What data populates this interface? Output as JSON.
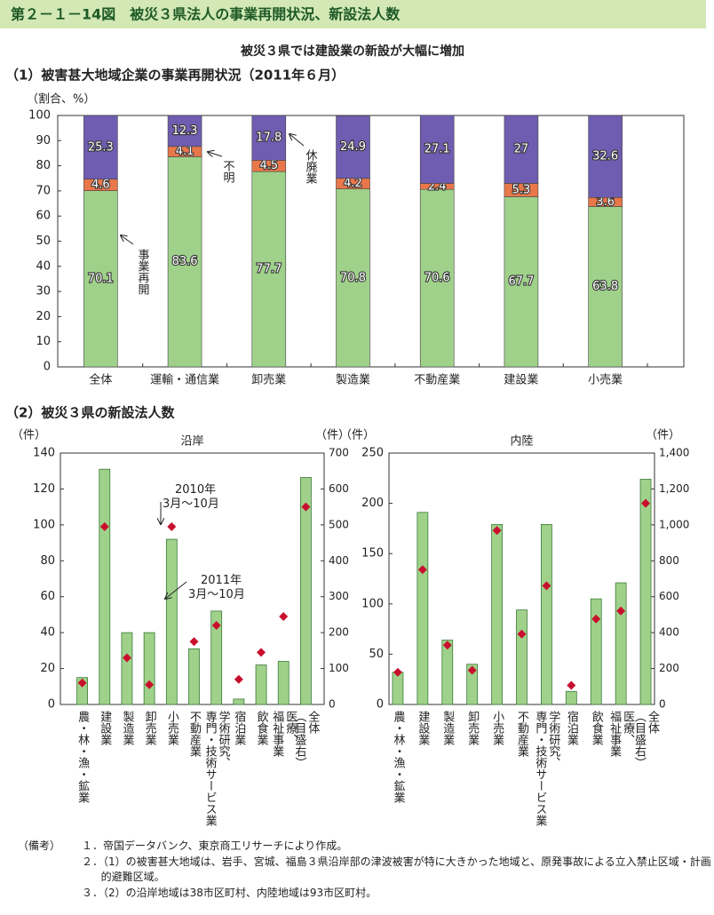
{
  "header": {
    "title": "第２－１－14図　被災３県法人の事業再開状況、新設法人数",
    "subtitle": "被災３県では建設業の新設が大幅に増加"
  },
  "chart_data": [
    {
      "type": "stacked_bar",
      "title": "（1）被害甚大地域企業の事業再開状況（2011年６月）",
      "ylabel": "（割合、%）",
      "categories": [
        "全体",
        "運輸・通信業",
        "卸売業",
        "製造業",
        "不動産業",
        "建設業",
        "小売業"
      ],
      "series": [
        {
          "name": "事業再開",
          "color": "#9fd18a",
          "values": [
            70.1,
            83.6,
            77.7,
            70.8,
            70.6,
            67.7,
            63.8
          ]
        },
        {
          "name": "不明",
          "color": "#e8774a",
          "values": [
            4.6,
            4.1,
            4.5,
            4.2,
            2.4,
            5.3,
            3.6
          ]
        },
        {
          "name": "休廃業",
          "color": "#6e5db0",
          "values": [
            25.3,
            12.3,
            17.8,
            24.9,
            27.1,
            27.0,
            32.6
          ]
        }
      ],
      "ylim": [
        0,
        100
      ],
      "yticks": [
        0,
        10,
        20,
        30,
        40,
        50,
        60,
        70,
        80,
        90,
        100
      ]
    },
    {
      "type": "bar_marker",
      "heading": "（2）被災３県の新設法人数",
      "title": "沿岸",
      "ylabel": "（件）",
      "y2label": "（件）",
      "categories": [
        "農・林・漁・鉱業",
        "建設業",
        "製造業",
        "卸売業",
        "小売業",
        "不動産業",
        "学術研究、専門・技術サービス業",
        "宿泊業",
        "飲食業",
        "医療、福祉事業",
        "全体（目盛右）"
      ],
      "series": [
        {
          "name": "2011年3月～10月",
          "style": "bar",
          "color": "#9fd18a",
          "values": [
            15,
            131,
            40,
            40,
            92,
            31,
            52,
            3,
            22,
            24,
            null
          ]
        },
        {
          "name": "2010年3月～10月",
          "style": "diamond",
          "color": "#c8102e",
          "values": [
            12,
            99,
            26,
            11,
            99,
            35,
            44,
            14,
            29,
            49,
            null
          ]
        },
        {
          "style": "bar",
          "axis": "y2",
          "color": "#9fd18a",
          "values": [
            null,
            null,
            null,
            null,
            null,
            null,
            null,
            null,
            null,
            null,
            632
          ]
        },
        {
          "style": "diamond",
          "axis": "y2",
          "color": "#c8102e",
          "values": [
            null,
            null,
            null,
            null,
            null,
            null,
            null,
            null,
            null,
            null,
            550
          ]
        }
      ],
      "ylim": [
        0,
        140
      ],
      "yticks": [
        0,
        20,
        40,
        60,
        80,
        100,
        120,
        140
      ],
      "y2lim": [
        0,
        700
      ],
      "y2ticks": [
        0,
        100,
        200,
        300,
        400,
        500,
        600,
        700
      ]
    },
    {
      "type": "bar_marker",
      "title": "内陸",
      "ylabel": "（件）",
      "y2label": "（件）",
      "categories": [
        "農・林・漁・鉱業",
        "建設業",
        "製造業",
        "卸売業",
        "小売業",
        "不動産業",
        "学術研究、専門・技術サービス業",
        "宿泊業",
        "飲食業",
        "医療、福祉事業",
        "全体（目盛右）"
      ],
      "series": [
        {
          "style": "bar",
          "color": "#9fd18a",
          "values": [
            32,
            191,
            64,
            40,
            179,
            94,
            179,
            13,
            105,
            121,
            null
          ]
        },
        {
          "style": "diamond",
          "color": "#c8102e",
          "values": [
            32,
            134,
            59,
            34,
            173,
            70,
            118,
            19,
            85,
            93,
            null
          ]
        },
        {
          "style": "bar",
          "axis": "y2",
          "color": "#9fd18a",
          "values": [
            null,
            null,
            null,
            null,
            null,
            null,
            null,
            null,
            null,
            null,
            1254
          ]
        },
        {
          "style": "diamond",
          "axis": "y2",
          "color": "#c8102e",
          "values": [
            null,
            null,
            null,
            null,
            null,
            null,
            null,
            null,
            null,
            null,
            1120
          ]
        }
      ],
      "ylim": [
        0,
        250
      ],
      "yticks": [
        0,
        50,
        100,
        150,
        200,
        250
      ],
      "y2lim": [
        0,
        1400
      ],
      "y2ticks": [
        0,
        200,
        400,
        600,
        800,
        {
          "value": 1000,
          "label": "1,000"
        },
        {
          "value": 1200,
          "label": "1,200"
        },
        {
          "value": 1400,
          "label": "1,400"
        }
      ]
    }
  ],
  "notes": {
    "label": "（備考）",
    "items": [
      "１．帝国データバンク、東京商工リサーチにより作成。",
      "２．（1）の被害甚大地域は、岩手、宮城、福島３県沿岸部の津波被害が特に大きかった地域と、原発事故による立入禁止区域・計画的避難区域。",
      "３．（2）の沿岸地域は38市区町村、内陸地域は93市区町村。"
    ]
  }
}
